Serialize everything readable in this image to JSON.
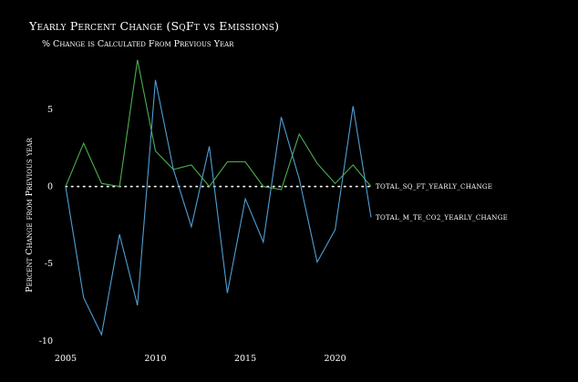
{
  "chart_data": {
    "type": "line",
    "title": "Yearly Percent Change (SqFt vs Emissions)",
    "subtitle": "% Change is Calculated From Previous Year",
    "ylabel": "Percent Change from Previous year",
    "xlabel": "",
    "xlim": [
      2004.8,
      2022.5
    ],
    "ylim": [
      -10.3,
      8.3
    ],
    "x_ticks": [
      2005,
      2010,
      2015,
      2020
    ],
    "y_ticks": [
      5,
      0,
      -5,
      -10
    ],
    "x_tick_labels": [
      "2005",
      "2010",
      "2015",
      "2020"
    ],
    "y_tick_labels": [
      "5",
      "0",
      "-5",
      "-10"
    ],
    "zero_line": {
      "style": "dotted",
      "color": "#ffffff"
    },
    "grid": false,
    "background": "#000000",
    "series": [
      {
        "name": "TOTAL_SQ_FT_YEARLY_CHANGE",
        "color": "#4caf50",
        "x": [
          2005,
          2006,
          2007,
          2008,
          2009,
          2010,
          2011,
          2012,
          2013,
          2014,
          2015,
          2016,
          2017,
          2018,
          2019,
          2020,
          2021,
          2022
        ],
        "values": [
          0.0,
          2.8,
          0.2,
          0.0,
          8.2,
          2.3,
          1.1,
          1.4,
          0.0,
          1.6,
          1.6,
          0.0,
          -0.2,
          3.4,
          1.5,
          0.2,
          1.4,
          0.0
        ]
      },
      {
        "name": "TOTAL_M_TE_CO2_YEARLY_CHANGE",
        "color": "#4f9fd4",
        "x": [
          2005,
          2006,
          2007,
          2008,
          2009,
          2010,
          2011,
          2012,
          2013,
          2014,
          2015,
          2016,
          2017,
          2018,
          2019,
          2020,
          2021,
          2022
        ],
        "values": [
          0.0,
          -7.2,
          -9.6,
          -3.1,
          -7.7,
          6.9,
          1.1,
          -2.6,
          2.6,
          -6.9,
          -0.8,
          -3.6,
          4.5,
          0.5,
          -4.9,
          -2.8,
          5.2,
          -2.0
        ]
      }
    ]
  }
}
